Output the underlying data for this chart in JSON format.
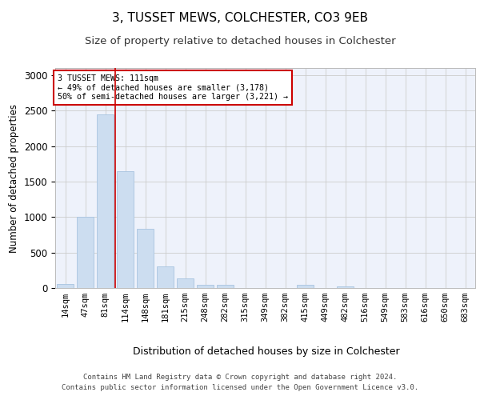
{
  "title": "3, TUSSET MEWS, COLCHESTER, CO3 9EB",
  "subtitle": "Size of property relative to detached houses in Colchester",
  "xlabel": "Distribution of detached houses by size in Colchester",
  "ylabel": "Number of detached properties",
  "bar_categories": [
    "14sqm",
    "47sqm",
    "81sqm",
    "114sqm",
    "148sqm",
    "181sqm",
    "215sqm",
    "248sqm",
    "282sqm",
    "315sqm",
    "349sqm",
    "382sqm",
    "415sqm",
    "449sqm",
    "482sqm",
    "516sqm",
    "549sqm",
    "583sqm",
    "616sqm",
    "650sqm",
    "683sqm"
  ],
  "bar_values": [
    60,
    1000,
    2450,
    1650,
    830,
    300,
    130,
    50,
    50,
    0,
    0,
    0,
    50,
    0,
    25,
    0,
    0,
    0,
    0,
    0,
    0
  ],
  "bar_color": "#ccddf0",
  "bar_edgecolor": "#a8c4e0",
  "vline_x": 2.5,
  "vline_color": "#cc0000",
  "annotation_text": "3 TUSSET MEWS: 111sqm\n← 49% of detached houses are smaller (3,178)\n50% of semi-detached houses are larger (3,221) →",
  "annotation_box_color": "#ffffff",
  "annotation_box_edgecolor": "#cc0000",
  "ylim": [
    0,
    3100
  ],
  "yticks": [
    0,
    500,
    1000,
    1500,
    2000,
    2500,
    3000
  ],
  "title_fontsize": 11,
  "subtitle_fontsize": 9.5,
  "xlabel_fontsize": 9,
  "ylabel_fontsize": 8.5,
  "tick_fontsize": 7.5,
  "footer_line1": "Contains HM Land Registry data © Crown copyright and database right 2024.",
  "footer_line2": "Contains public sector information licensed under the Open Government Licence v3.0.",
  "background_color": "#ffffff",
  "plot_bg_color": "#eef2fb"
}
